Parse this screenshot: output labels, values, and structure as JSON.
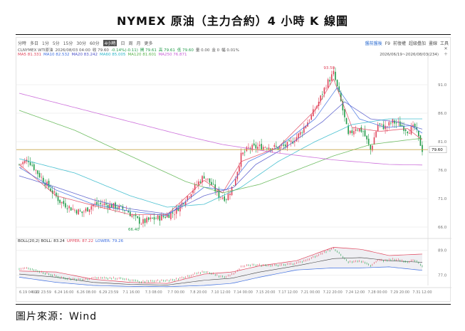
{
  "title": "NYMEX 原油（主力合約）4 小時 K 線圖",
  "source": "圖片來源：Wind",
  "toolbar": {
    "periods": [
      "分時",
      "多日",
      "1分",
      "5分",
      "15分",
      "30分",
      "60分",
      "4小時",
      "日",
      "周",
      "月",
      "更多"
    ],
    "active": "4小時",
    "right_items": [
      "盤前盤後",
      "F9",
      "前復權",
      "超級疊加",
      "畫線",
      "工具"
    ]
  },
  "ohlc": {
    "symbol": "CLNYMEX WTI原油",
    "datetime": "2026/08/03 04:00",
    "fields": [
      "收 79.60",
      "-0.14%(-0.11)",
      "開 79.61",
      "高 79.61",
      "低 79.60",
      "量 0.00",
      "金 0",
      "幅 0.01%"
    ]
  },
  "ma_legend": [
    {
      "label": "MA5",
      "value": "81.331",
      "color": "#e0435a"
    },
    {
      "label": "MA10",
      "value": "82.532",
      "color": "#3d6ee0"
    },
    {
      "label": "MA20",
      "value": "83.242",
      "color": "#4c52c9"
    },
    {
      "label": "MA60",
      "value": "85.005",
      "color": "#2ab6c9"
    },
    {
      "label": "MA120",
      "value": "81.601",
      "color": "#58b34a"
    },
    {
      "label": "MA250",
      "value": "76.871",
      "color": "#c55bd6"
    }
  ],
  "date_range": "2026/06/19~2026/08/03(234)",
  "boll_legend": [
    {
      "label": "BOLL(20,2) BOLL:",
      "value": "83.24",
      "color": "#333333"
    },
    {
      "label": "UPPER:",
      "value": "87.22",
      "color": "#e0435a"
    },
    {
      "label": "LOWER:",
      "value": "79.26",
      "color": "#3d6ee0"
    }
  ],
  "colors": {
    "up": "#e0435a",
    "down": "#1f9a47",
    "price_line": "#c8a84a"
  },
  "chart_data": {
    "type": "candlestick",
    "main": {
      "ylim": [
        64.5,
        95.5
      ],
      "y_ticks": [
        66.0,
        71.0,
        76.0,
        81.0,
        86.0,
        91.0
      ],
      "last_price": 79.6,
      "annotations": [
        {
          "text": "93.50",
          "label": "high"
        },
        {
          "text": "66.40",
          "label": "low"
        }
      ],
      "close_path": [
        [
          0,
          77.0
        ],
        [
          5,
          77.8
        ],
        [
          10,
          75.5
        ],
        [
          16,
          73.0
        ],
        [
          22,
          70.5
        ],
        [
          28,
          69.3
        ],
        [
          34,
          68.5
        ],
        [
          40,
          70.0
        ],
        [
          46,
          70.0
        ],
        [
          52,
          69.6
        ],
        [
          58,
          69.0
        ],
        [
          62,
          67.7
        ],
        [
          66,
          66.8
        ],
        [
          72,
          67.4
        ],
        [
          78,
          67.8
        ],
        [
          84,
          68.6
        ],
        [
          90,
          71.0
        ],
        [
          96,
          73.5
        ],
        [
          100,
          75.0
        ],
        [
          104,
          73.5
        ],
        [
          108,
          71.5
        ],
        [
          112,
          71.1
        ],
        [
          116,
          73.5
        ],
        [
          120,
          78.5
        ],
        [
          124,
          79.8
        ],
        [
          128,
          80.0
        ],
        [
          134,
          80.2
        ],
        [
          140,
          79.9
        ],
        [
          146,
          80.5
        ],
        [
          152,
          82.5
        ],
        [
          158,
          85.5
        ],
        [
          162,
          88.0
        ],
        [
          166,
          91.0
        ],
        [
          170,
          93.0
        ],
        [
          174,
          88.0
        ],
        [
          178,
          82.0
        ],
        [
          182,
          83.5
        ],
        [
          186,
          82.8
        ],
        [
          190,
          79.5
        ],
        [
          194,
          84.0
        ],
        [
          198,
          83.5
        ],
        [
          202,
          84.5
        ],
        [
          206,
          84.0
        ],
        [
          210,
          83.0
        ],
        [
          214,
          83.5
        ],
        [
          218,
          79.6
        ]
      ],
      "ma_paths": {
        "MA5": [
          [
            0,
            77.0
          ],
          [
            20,
            71.5
          ],
          [
            40,
            69.8
          ],
          [
            60,
            68.2
          ],
          [
            80,
            68.2
          ],
          [
            100,
            74.2
          ],
          [
            110,
            72.0
          ],
          [
            120,
            77.5
          ],
          [
            140,
            80.0
          ],
          [
            160,
            86.5
          ],
          [
            170,
            92.0
          ],
          [
            180,
            83.5
          ],
          [
            195,
            82.8
          ],
          [
            210,
            83.3
          ],
          [
            218,
            81.3
          ]
        ],
        "MA10": [
          [
            0,
            76.5
          ],
          [
            20,
            72.5
          ],
          [
            40,
            70.0
          ],
          [
            60,
            68.8
          ],
          [
            80,
            68.0
          ],
          [
            100,
            73.0
          ],
          [
            112,
            72.5
          ],
          [
            124,
            77.5
          ],
          [
            140,
            80.0
          ],
          [
            160,
            85.0
          ],
          [
            172,
            90.5
          ],
          [
            184,
            85.0
          ],
          [
            198,
            83.5
          ],
          [
            212,
            83.8
          ],
          [
            218,
            82.5
          ]
        ],
        "MA20": [
          [
            0,
            75.0
          ],
          [
            20,
            73.0
          ],
          [
            40,
            70.8
          ],
          [
            60,
            69.2
          ],
          [
            80,
            68.3
          ],
          [
            100,
            71.5
          ],
          [
            116,
            73.0
          ],
          [
            128,
            77.0
          ],
          [
            144,
            80.0
          ],
          [
            164,
            84.5
          ],
          [
            176,
            88.0
          ],
          [
            190,
            85.0
          ],
          [
            204,
            84.5
          ],
          [
            218,
            83.2
          ]
        ],
        "MA60": [
          [
            0,
            78.0
          ],
          [
            30,
            75.5
          ],
          [
            60,
            71.5
          ],
          [
            80,
            69.5
          ],
          [
            100,
            70.0
          ],
          [
            120,
            73.0
          ],
          [
            140,
            77.5
          ],
          [
            160,
            81.0
          ],
          [
            180,
            84.0
          ],
          [
            200,
            85.0
          ],
          [
            218,
            85.0
          ]
        ],
        "MA120": [
          [
            0,
            86.5
          ],
          [
            30,
            83.0
          ],
          [
            60,
            78.5
          ],
          [
            90,
            74.0
          ],
          [
            110,
            72.0
          ],
          [
            130,
            73.5
          ],
          [
            150,
            76.0
          ],
          [
            170,
            78.5
          ],
          [
            190,
            80.5
          ],
          [
            210,
            81.3
          ],
          [
            218,
            81.6
          ]
        ],
        "MA250": [
          [
            0,
            89.5
          ],
          [
            30,
            87.0
          ],
          [
            60,
            84.5
          ],
          [
            90,
            82.0
          ],
          [
            110,
            80.5
          ],
          [
            140,
            79.0
          ],
          [
            170,
            77.8
          ],
          [
            200,
            77.0
          ],
          [
            218,
            76.9
          ]
        ]
      }
    },
    "sub": {
      "name": "BOLL(20,2)",
      "ylim": [
        72.0,
        92.0
      ],
      "y_ticks": [
        77.0,
        89.0
      ],
      "upper": [
        [
          0,
          79.0
        ],
        [
          20,
          78.5
        ],
        [
          40,
          75.0
        ],
        [
          60,
          73.5
        ],
        [
          80,
          73.0
        ],
        [
          100,
          77.5
        ],
        [
          115,
          78.5
        ],
        [
          130,
          81.5
        ],
        [
          150,
          84.0
        ],
        [
          170,
          90.5
        ],
        [
          185,
          89.5
        ],
        [
          200,
          86.5
        ],
        [
          218,
          87.2
        ]
      ],
      "mid": [
        [
          0,
          77.5
        ],
        [
          20,
          76.0
        ],
        [
          40,
          73.5
        ],
        [
          60,
          72.5
        ],
        [
          80,
          72.2
        ],
        [
          100,
          74.5
        ],
        [
          115,
          75.5
        ],
        [
          130,
          78.5
        ],
        [
          150,
          81.5
        ],
        [
          170,
          85.0
        ],
        [
          185,
          85.5
        ],
        [
          200,
          84.0
        ],
        [
          218,
          83.2
        ]
      ],
      "lower": [
        [
          0,
          76.0
        ],
        [
          20,
          73.5
        ],
        [
          40,
          72.0
        ],
        [
          60,
          71.5
        ],
        [
          80,
          71.4
        ],
        [
          100,
          72.0
        ],
        [
          115,
          73.0
        ],
        [
          130,
          76.0
        ],
        [
          150,
          79.5
        ],
        [
          170,
          80.5
        ],
        [
          185,
          80.5
        ],
        [
          200,
          81.0
        ],
        [
          218,
          79.3
        ]
      ]
    },
    "x_labels": [
      "6.19 04:00",
      "6.22 23:59",
      "6.24 16:00",
      "6.26 08:00",
      "6.29 23:59",
      "7.1 16:00",
      "7.3 08:00",
      "7.7 00:00",
      "7.8 20:00",
      "7.10 12:00",
      "7.14 00:00",
      "7.15 20:00",
      "7.17 12:00",
      "7.21 00:00",
      "7.22 20:00",
      "7.24 12:00",
      "7.28 00:00",
      "7.29 20:00",
      "7.31 12:00"
    ]
  }
}
